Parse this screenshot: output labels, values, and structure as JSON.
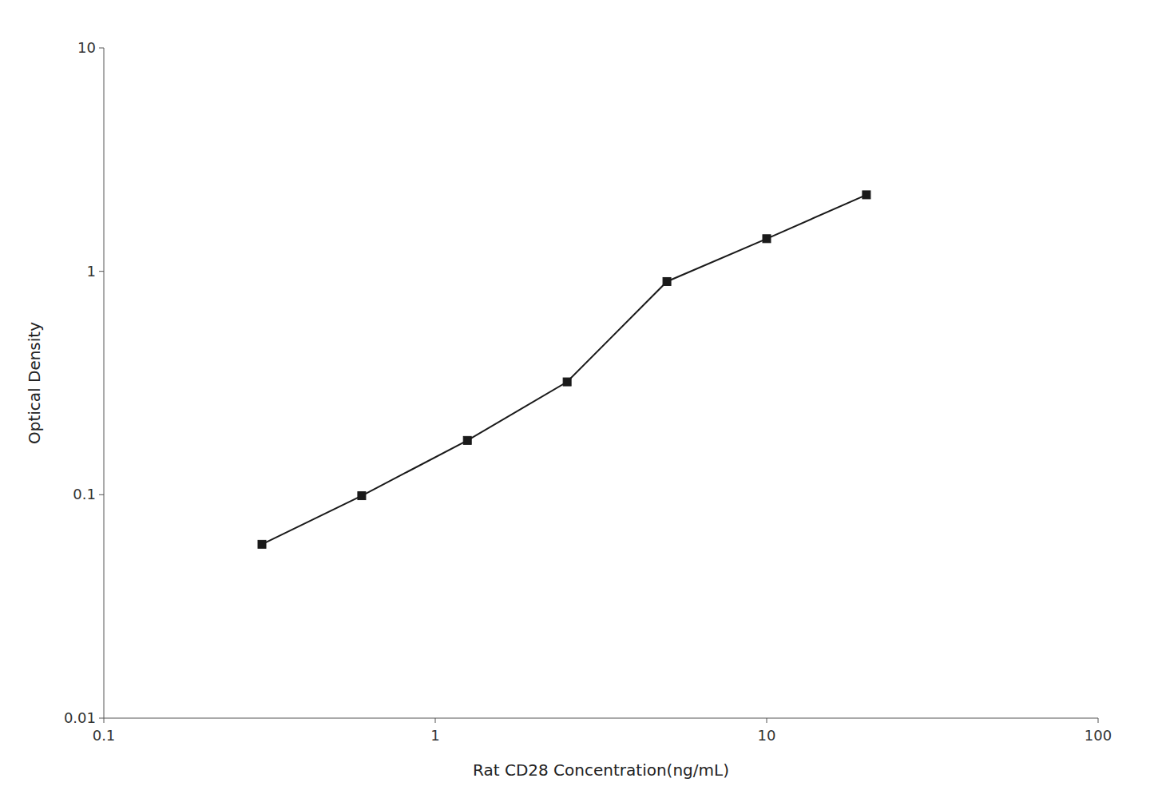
{
  "chart_data": {
    "type": "line",
    "x": [
      0.3,
      0.6,
      1.25,
      2.5,
      5.0,
      10.0,
      20.0
    ],
    "values": [
      0.06,
      0.099,
      0.175,
      0.32,
      0.9,
      1.4,
      2.2
    ],
    "xlabel": "Rat CD28 Concentration(ng/mL)",
    "ylabel": "Optical Density",
    "xlim": [
      0.1,
      100
    ],
    "ylim": [
      0.01,
      10
    ],
    "xticks": [
      0.1,
      1,
      10,
      100
    ],
    "yticks": [
      0.01,
      0.1,
      1,
      10
    ],
    "log": true,
    "grid": false,
    "color": "#1a1a1a",
    "marker": "square"
  }
}
